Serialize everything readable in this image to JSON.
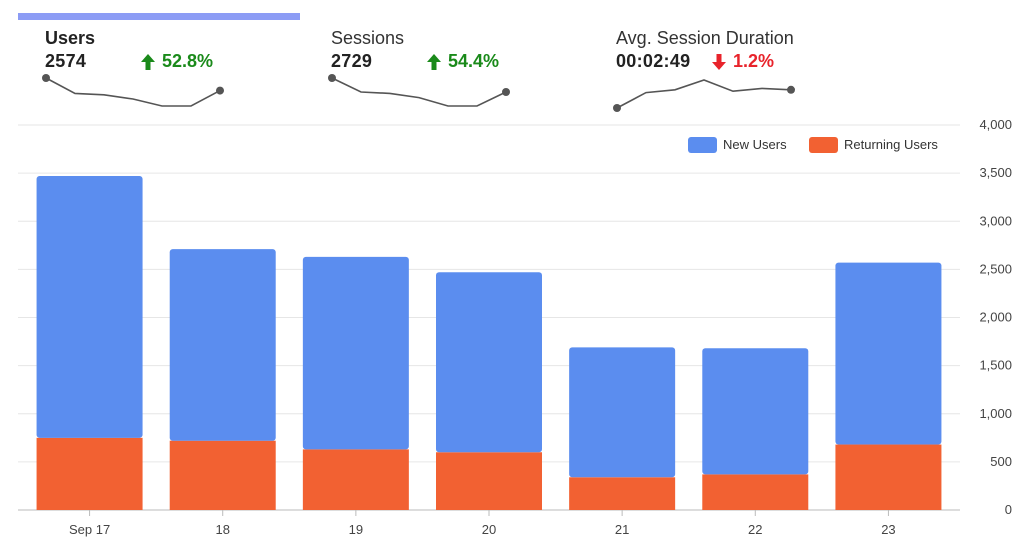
{
  "metrics": [
    {
      "title": "Users",
      "value": "2574",
      "change": "52.8%",
      "direction": "up",
      "color": "#1a8a1a",
      "spark": [
        0.0,
        0.55,
        0.6,
        0.75,
        1.0,
        1.0,
        0.45
      ]
    },
    {
      "title": "Sessions",
      "value": "2729",
      "change": "54.4%",
      "direction": "up",
      "color": "#1a8a1a",
      "spark": [
        0.0,
        0.5,
        0.55,
        0.7,
        1.0,
        1.0,
        0.5
      ]
    },
    {
      "title": "Avg. Session Duration",
      "value": "00:02:49",
      "change": "1.2%",
      "direction": "down",
      "color": "#e8232b",
      "spark": [
        1.0,
        0.45,
        0.35,
        0.0,
        0.4,
        0.3,
        0.35
      ]
    }
  ],
  "chart_data": {
    "type": "bar",
    "stacked": true,
    "categories": [
      "Sep 17",
      "18",
      "19",
      "20",
      "21",
      "22",
      "23"
    ],
    "series": [
      {
        "name": "New Users",
        "color": "#5b8def",
        "values": [
          2720,
          1990,
          2000,
          1870,
          1350,
          1310,
          1890
        ]
      },
      {
        "name": "Returning Users",
        "color": "#f26132",
        "values": [
          750,
          720,
          630,
          600,
          340,
          370,
          680
        ]
      }
    ],
    "ylim": [
      0,
      4000
    ],
    "yticks": [
      "0",
      "500",
      "1,000",
      "1,500",
      "2,000",
      "2,500",
      "3,000",
      "3,500",
      "4,000"
    ],
    "grid": true,
    "legend": "top-right",
    "y_axis_side": "right"
  }
}
